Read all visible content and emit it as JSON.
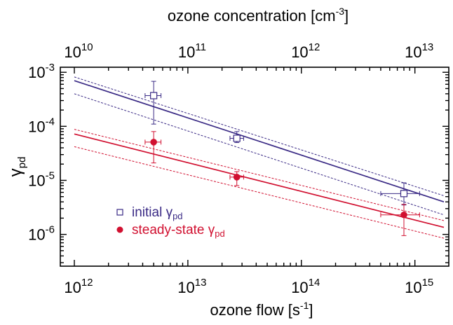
{
  "chart_data": {
    "type": "scatter",
    "x_scale": "log",
    "y_scale": "log",
    "xlabel": {
      "main": "ozone flow [s",
      "sup": "-1",
      "close": "]"
    },
    "top_xlabel": {
      "main": "ozone concentration [cm",
      "sup": "-3",
      "close": "]"
    },
    "ylabel": {
      "main": "γ",
      "sub": "pd"
    },
    "xlim": [
      1000000000000.0,
      1800000000000000.0
    ],
    "ylim": [
      3e-07,
      0.0011
    ],
    "top_xlim": [
      10000000000.0,
      18000000000000.0
    ],
    "x_ticks": [
      {
        "value": 1000000000000.0,
        "base": "10",
        "exp": "12"
      },
      {
        "value": 10000000000000.0,
        "base": "10",
        "exp": "13"
      },
      {
        "value": 100000000000000.0,
        "base": "10",
        "exp": "14"
      },
      {
        "value": 1000000000000000.0,
        "base": "10",
        "exp": "15"
      }
    ],
    "top_ticks": [
      {
        "value": 10000000000.0,
        "base": "10",
        "exp": "10"
      },
      {
        "value": 100000000000.0,
        "base": "10",
        "exp": "11"
      },
      {
        "value": 1000000000000.0,
        "base": "10",
        "exp": "12"
      },
      {
        "value": 10000000000000.0,
        "base": "10",
        "exp": "13"
      }
    ],
    "y_ticks": [
      {
        "value": 0.001,
        "base": "10",
        "exp": "-3"
      },
      {
        "value": 0.0001,
        "base": "10",
        "exp": "-4"
      },
      {
        "value": 1e-05,
        "base": "10",
        "exp": "-5"
      },
      {
        "value": 1e-06,
        "base": "10",
        "exp": "-6"
      }
    ],
    "series": [
      {
        "name": {
          "main": "initial γ",
          "sub": "pd"
        },
        "color": "#3a2a85",
        "marker": "open-square",
        "points": [
          {
            "x": 5000000000000.0,
            "y": 0.00037,
            "xerr": [
              4200000000000.0,
              5800000000000.0
            ],
            "yerr": [
              0.00011,
              0.00068
            ]
          },
          {
            "x": 27000000000000.0,
            "y": 6e-05,
            "xerr": [
              23500000000000.0,
              31000000000000.0
            ],
            "yerr": [
              5e-05,
              8e-05
            ]
          },
          {
            "x": 800000000000000.0,
            "y": 5.7e-06,
            "xerr": [
              500000000000000.0,
              1100000000000000.0
            ],
            "yerr": [
              3.5e-06,
              9e-06
            ]
          }
        ],
        "fit": {
          "x": [
            1000000000000.0,
            1800000000000000.0
          ],
          "y": [
            0.0007,
            4e-06
          ]
        },
        "bounds": [
          {
            "x": [
              1000000000000.0,
              1800000000000000.0
            ],
            "y": [
              0.00082,
              5.2e-06
            ]
          },
          {
            "x": [
              1000000000000.0,
              1800000000000000.0
            ],
            "y": [
              0.0004,
              2.3e-06
            ]
          }
        ]
      },
      {
        "name": {
          "main": "steady-state γ",
          "sub": "pd"
        },
        "color": "#d11030",
        "marker": "filled-circle",
        "points": [
          {
            "x": 5000000000000.0,
            "y": 5.1e-05,
            "xerr": [
              4200000000000.0,
              5800000000000.0
            ],
            "yerr": [
              2.1e-05,
              8e-05
            ]
          },
          {
            "x": 27000000000000.0,
            "y": 1.15e-05,
            "xerr": [
              23500000000000.0,
              31000000000000.0
            ],
            "yerr": [
              8e-06,
              1.45e-05
            ]
          },
          {
            "x": 800000000000000.0,
            "y": 2.3e-06,
            "xerr": [
              500000000000000.0,
              1100000000000000.0
            ],
            "yerr": [
              9.5e-07,
              3.6e-06
            ]
          }
        ],
        "fit": {
          "x": [
            1000000000000.0,
            1800000000000000.0
          ],
          "y": [
            7.2e-05,
            1.35e-06
          ]
        },
        "bounds": [
          {
            "x": [
              1000000000000.0,
              1800000000000000.0
            ],
            "y": [
              8.8e-05,
              1.8e-06
            ]
          },
          {
            "x": [
              1000000000000.0,
              1800000000000000.0
            ],
            "y": [
              4.2e-05,
              8.5e-07
            ]
          }
        ]
      }
    ]
  }
}
